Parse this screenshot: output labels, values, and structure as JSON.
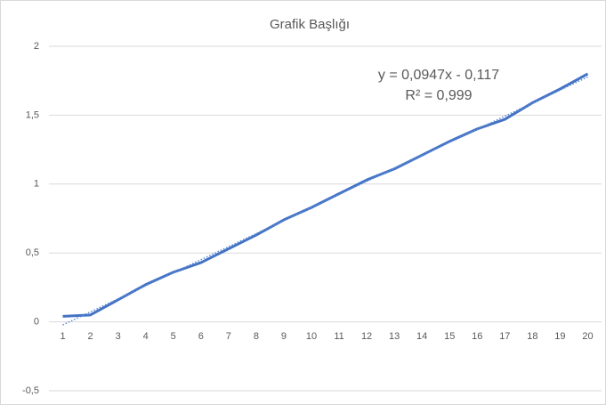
{
  "chart_data": {
    "type": "line",
    "title": "Grafik Başlığı",
    "categories": [
      "1",
      "2",
      "3",
      "4",
      "5",
      "6",
      "7",
      "8",
      "9",
      "10",
      "11",
      "12",
      "13",
      "14",
      "15",
      "16",
      "17",
      "18",
      "19",
      "20"
    ],
    "series": [
      {
        "color": "#4472c4",
        "values": [
          0.04,
          0.05,
          0.16,
          0.27,
          0.36,
          0.43,
          0.53,
          0.63,
          0.74,
          0.83,
          0.93,
          1.03,
          1.11,
          1.21,
          1.31,
          1.4,
          1.47,
          1.59,
          1.69,
          1.8
        ]
      }
    ],
    "trendline": {
      "slope": 0.0947,
      "intercept": -0.117,
      "color": "#5b8bd6",
      "equation": "y = 0,0947x - 0,117",
      "r2": "R² = 0,999"
    },
    "ylim": [
      -0.5,
      2
    ],
    "yticks": [
      {
        "value": -0.5,
        "label": "-0,5"
      },
      0,
      {
        "value": 0.5,
        "label": "0,5"
      },
      1,
      {
        "value": 1.5,
        "label": "1,5"
      },
      2
    ],
    "grid": true
  }
}
